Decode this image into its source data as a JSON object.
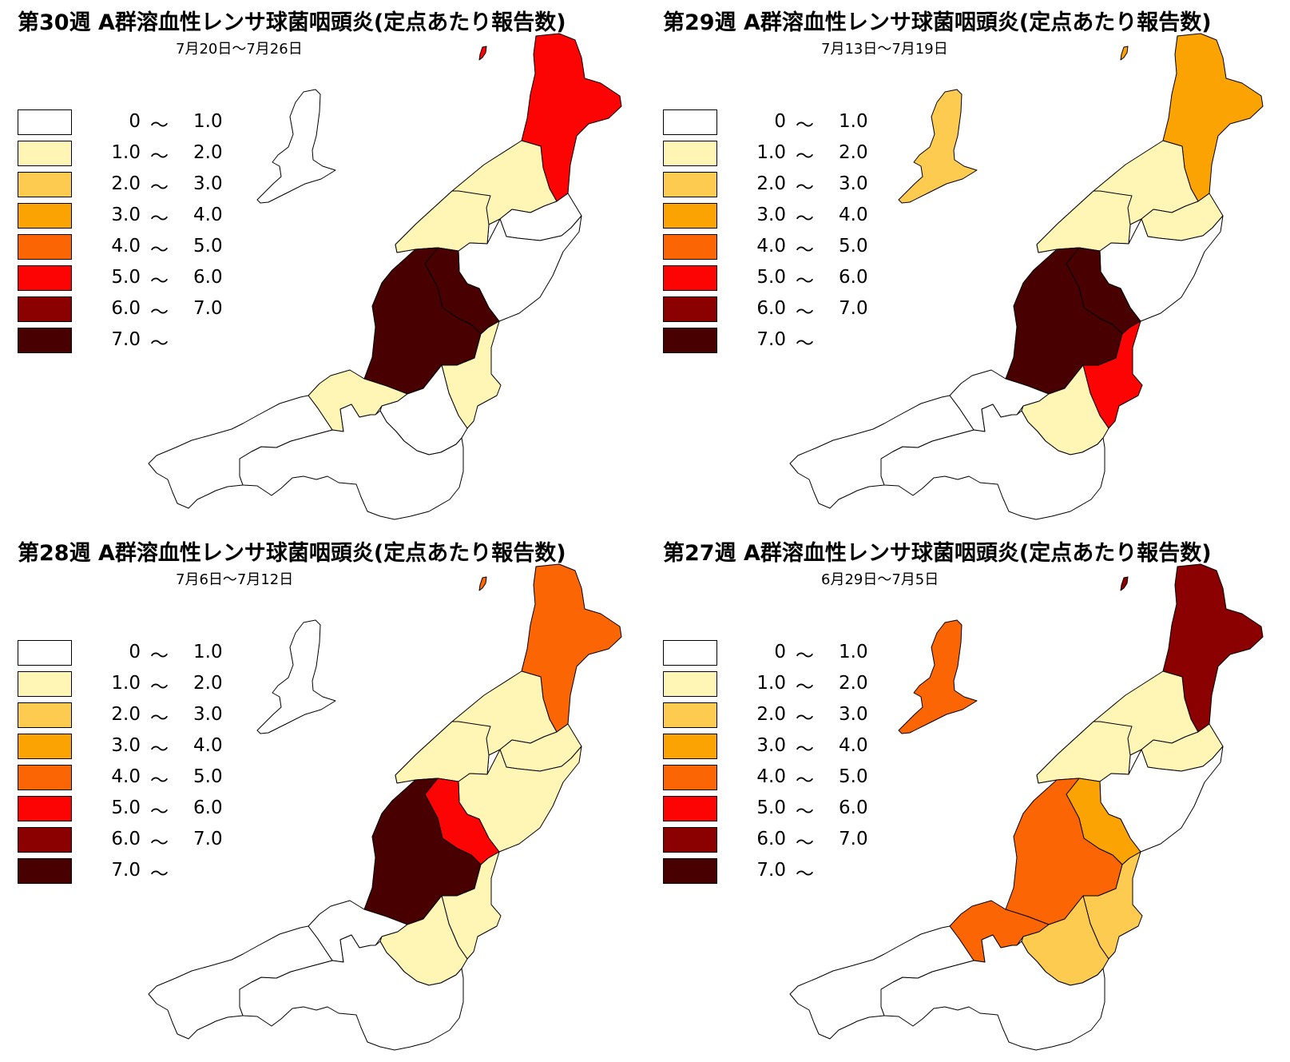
{
  "legend": [
    {
      "lo": "0",
      "sep": "～",
      "hi": "1.0",
      "color": "#FFFFFF"
    },
    {
      "lo": "1.0",
      "sep": "～",
      "hi": "2.0",
      "color": "#FFF6B5"
    },
    {
      "lo": "2.0",
      "sep": "～",
      "hi": "3.0",
      "color": "#FCCB50"
    },
    {
      "lo": "3.0",
      "sep": "～",
      "hi": "4.0",
      "color": "#FCA304"
    },
    {
      "lo": "4.0",
      "sep": "～",
      "hi": "5.0",
      "color": "#FC6504"
    },
    {
      "lo": "5.0",
      "sep": "～",
      "hi": "6.0",
      "color": "#FC0404"
    },
    {
      "lo": "6.0",
      "sep": "～",
      "hi": "7.0",
      "color": "#8B0000"
    },
    {
      "lo": "7.0",
      "sep": "～",
      "hi": "",
      "color": "#480000"
    }
  ],
  "panels": [
    {
      "title": "第30週 A群溶血性レンサ球菌咽頭炎(定点あたり報告数)",
      "subtitle": "7月20日～7月26日",
      "levels": {
        "awashima": 5,
        "murakami": 5,
        "niigata": 1,
        "nishikan": 1,
        "nagaoka": 7,
        "sanjo": 7,
        "shibata": 0,
        "agano": 0,
        "kashiwazaki": 1,
        "uonuma": 1,
        "minamiuonuma": 0,
        "jouetsu": 0,
        "itoigawa": 0,
        "sado": 0
      }
    },
    {
      "title": "第29週 A群溶血性レンサ球菌咽頭炎(定点あたり報告数)",
      "subtitle": "7月13日～7月19日",
      "levels": {
        "awashima": 3,
        "murakami": 3,
        "niigata": 1,
        "nishikan": 1,
        "nagaoka": 7,
        "sanjo": 7,
        "shibata": 1,
        "agano": 0,
        "kashiwazaki": 0,
        "uonuma": 5,
        "minamiuonuma": 1,
        "jouetsu": 0,
        "itoigawa": 0,
        "sado": 2
      }
    },
    {
      "title": "第28週 A群溶血性レンサ球菌咽頭炎(定点あたり報告数)",
      "subtitle": "7月6日～7月12日",
      "levels": {
        "awashima": 4,
        "murakami": 4,
        "niigata": 1,
        "nishikan": 1,
        "nagaoka": 7,
        "sanjo": 5,
        "shibata": 1,
        "agano": 1,
        "kashiwazaki": 0,
        "uonuma": 1,
        "minamiuonuma": 1,
        "jouetsu": 0,
        "itoigawa": 0,
        "sado": 0
      }
    },
    {
      "title": "第27週 A群溶血性レンサ球菌咽頭炎(定点あたり報告数)",
      "subtitle": "6月29日～7月5日",
      "levels": {
        "awashima": 6,
        "murakami": 6,
        "niigata": 1,
        "nishikan": 1,
        "nagaoka": 4,
        "sanjo": 3,
        "shibata": 1,
        "agano": 0,
        "kashiwazaki": 4,
        "uonuma": 2,
        "minamiuonuma": 2,
        "jouetsu": 0,
        "itoigawa": 0,
        "sado": 4
      }
    }
  ]
}
